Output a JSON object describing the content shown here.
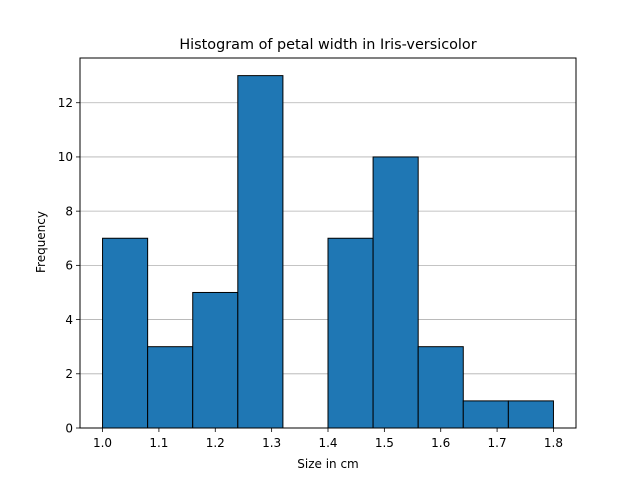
{
  "chart_data": {
    "type": "bar",
    "title": "Histogram of petal width in Iris-versicolor",
    "xlabel": "Size in cm",
    "ylabel": "Frequency",
    "bins": [
      {
        "start": 1.0,
        "end": 1.08,
        "count": 7
      },
      {
        "start": 1.08,
        "end": 1.16,
        "count": 3
      },
      {
        "start": 1.16,
        "end": 1.24,
        "count": 5
      },
      {
        "start": 1.24,
        "end": 1.32,
        "count": 13
      },
      {
        "start": 1.32,
        "end": 1.4,
        "count": 0
      },
      {
        "start": 1.4,
        "end": 1.48,
        "count": 7
      },
      {
        "start": 1.48,
        "end": 1.56,
        "count": 10
      },
      {
        "start": 1.56,
        "end": 1.64,
        "count": 3
      },
      {
        "start": 1.64,
        "end": 1.72,
        "count": 1
      },
      {
        "start": 1.72,
        "end": 1.8,
        "count": 1
      }
    ],
    "xticks": [
      "1.0",
      "1.1",
      "1.2",
      "1.3",
      "1.4",
      "1.5",
      "1.6",
      "1.7",
      "1.8"
    ],
    "yticks": [
      "0",
      "2",
      "4",
      "6",
      "8",
      "10",
      "12"
    ],
    "xlim": [
      0.96,
      1.84
    ],
    "ylim": [
      0,
      13.65
    ],
    "grid": "y",
    "bar_color": "#1f77b4",
    "edge_color": "#000000",
    "grid_color": "#b0b0b0"
  }
}
